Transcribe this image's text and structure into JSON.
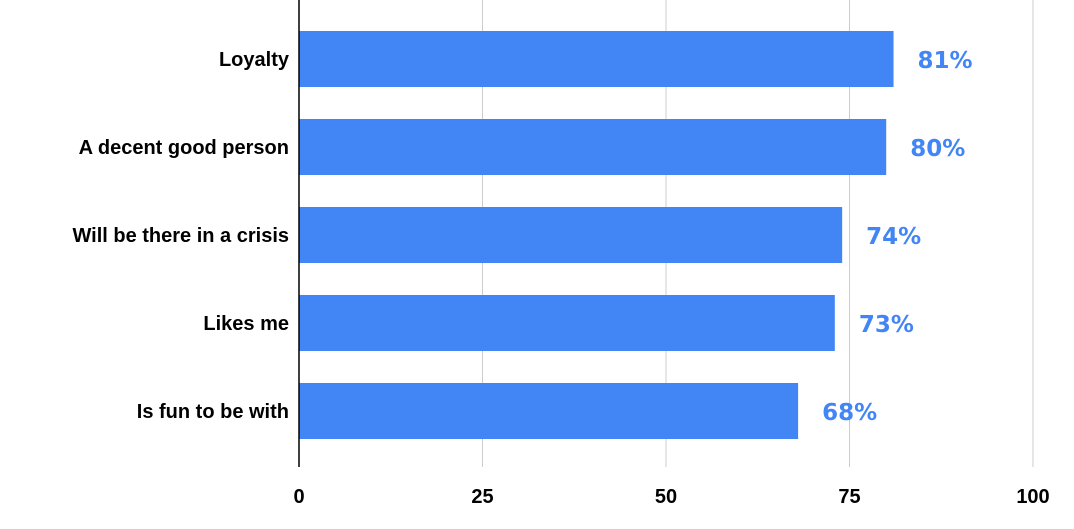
{
  "chart_data": {
    "type": "bar",
    "orientation": "horizontal",
    "categories": [
      "Loyalty",
      "A decent good person",
      "Will be there in a crisis",
      "Likes me",
      "Is fun to be with"
    ],
    "values": [
      81,
      80,
      74,
      73,
      68
    ],
    "data_labels": [
      "81%",
      "80%",
      "74%",
      "73%",
      "68%"
    ],
    "xlim": [
      0,
      100
    ],
    "xticks": [
      "0",
      "25",
      "50",
      "75",
      "100"
    ],
    "grid": true,
    "legend": "none",
    "colors": {
      "bar": "#4285f4",
      "label": "#4285f4",
      "grid": "#cccccc",
      "axis": "#000000"
    }
  }
}
